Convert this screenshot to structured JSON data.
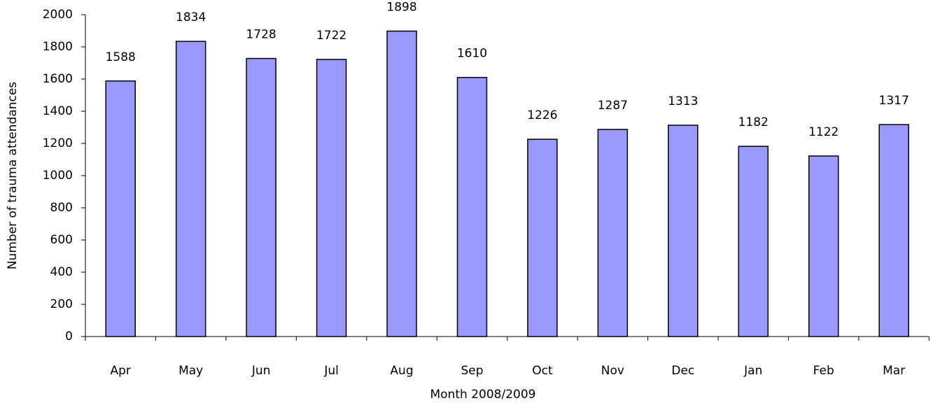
{
  "chart_data": {
    "type": "bar",
    "categories": [
      "Apr",
      "May",
      "Jun",
      "Jul",
      "Aug",
      "Sep",
      "Oct",
      "Nov",
      "Dec",
      "Jan",
      "Feb",
      "Mar"
    ],
    "values": [
      1588,
      1834,
      1728,
      1722,
      1898,
      1610,
      1226,
      1287,
      1313,
      1182,
      1122,
      1317
    ],
    "color": "#9999ff",
    "x_label": "Month 2008/2009",
    "y_label": "Number of trauma attendances",
    "ylim": [
      0,
      2000
    ],
    "yticks": [
      0,
      200,
      400,
      600,
      800,
      1000,
      1200,
      1400,
      1600,
      1800,
      2000
    ],
    "grid": false
  }
}
